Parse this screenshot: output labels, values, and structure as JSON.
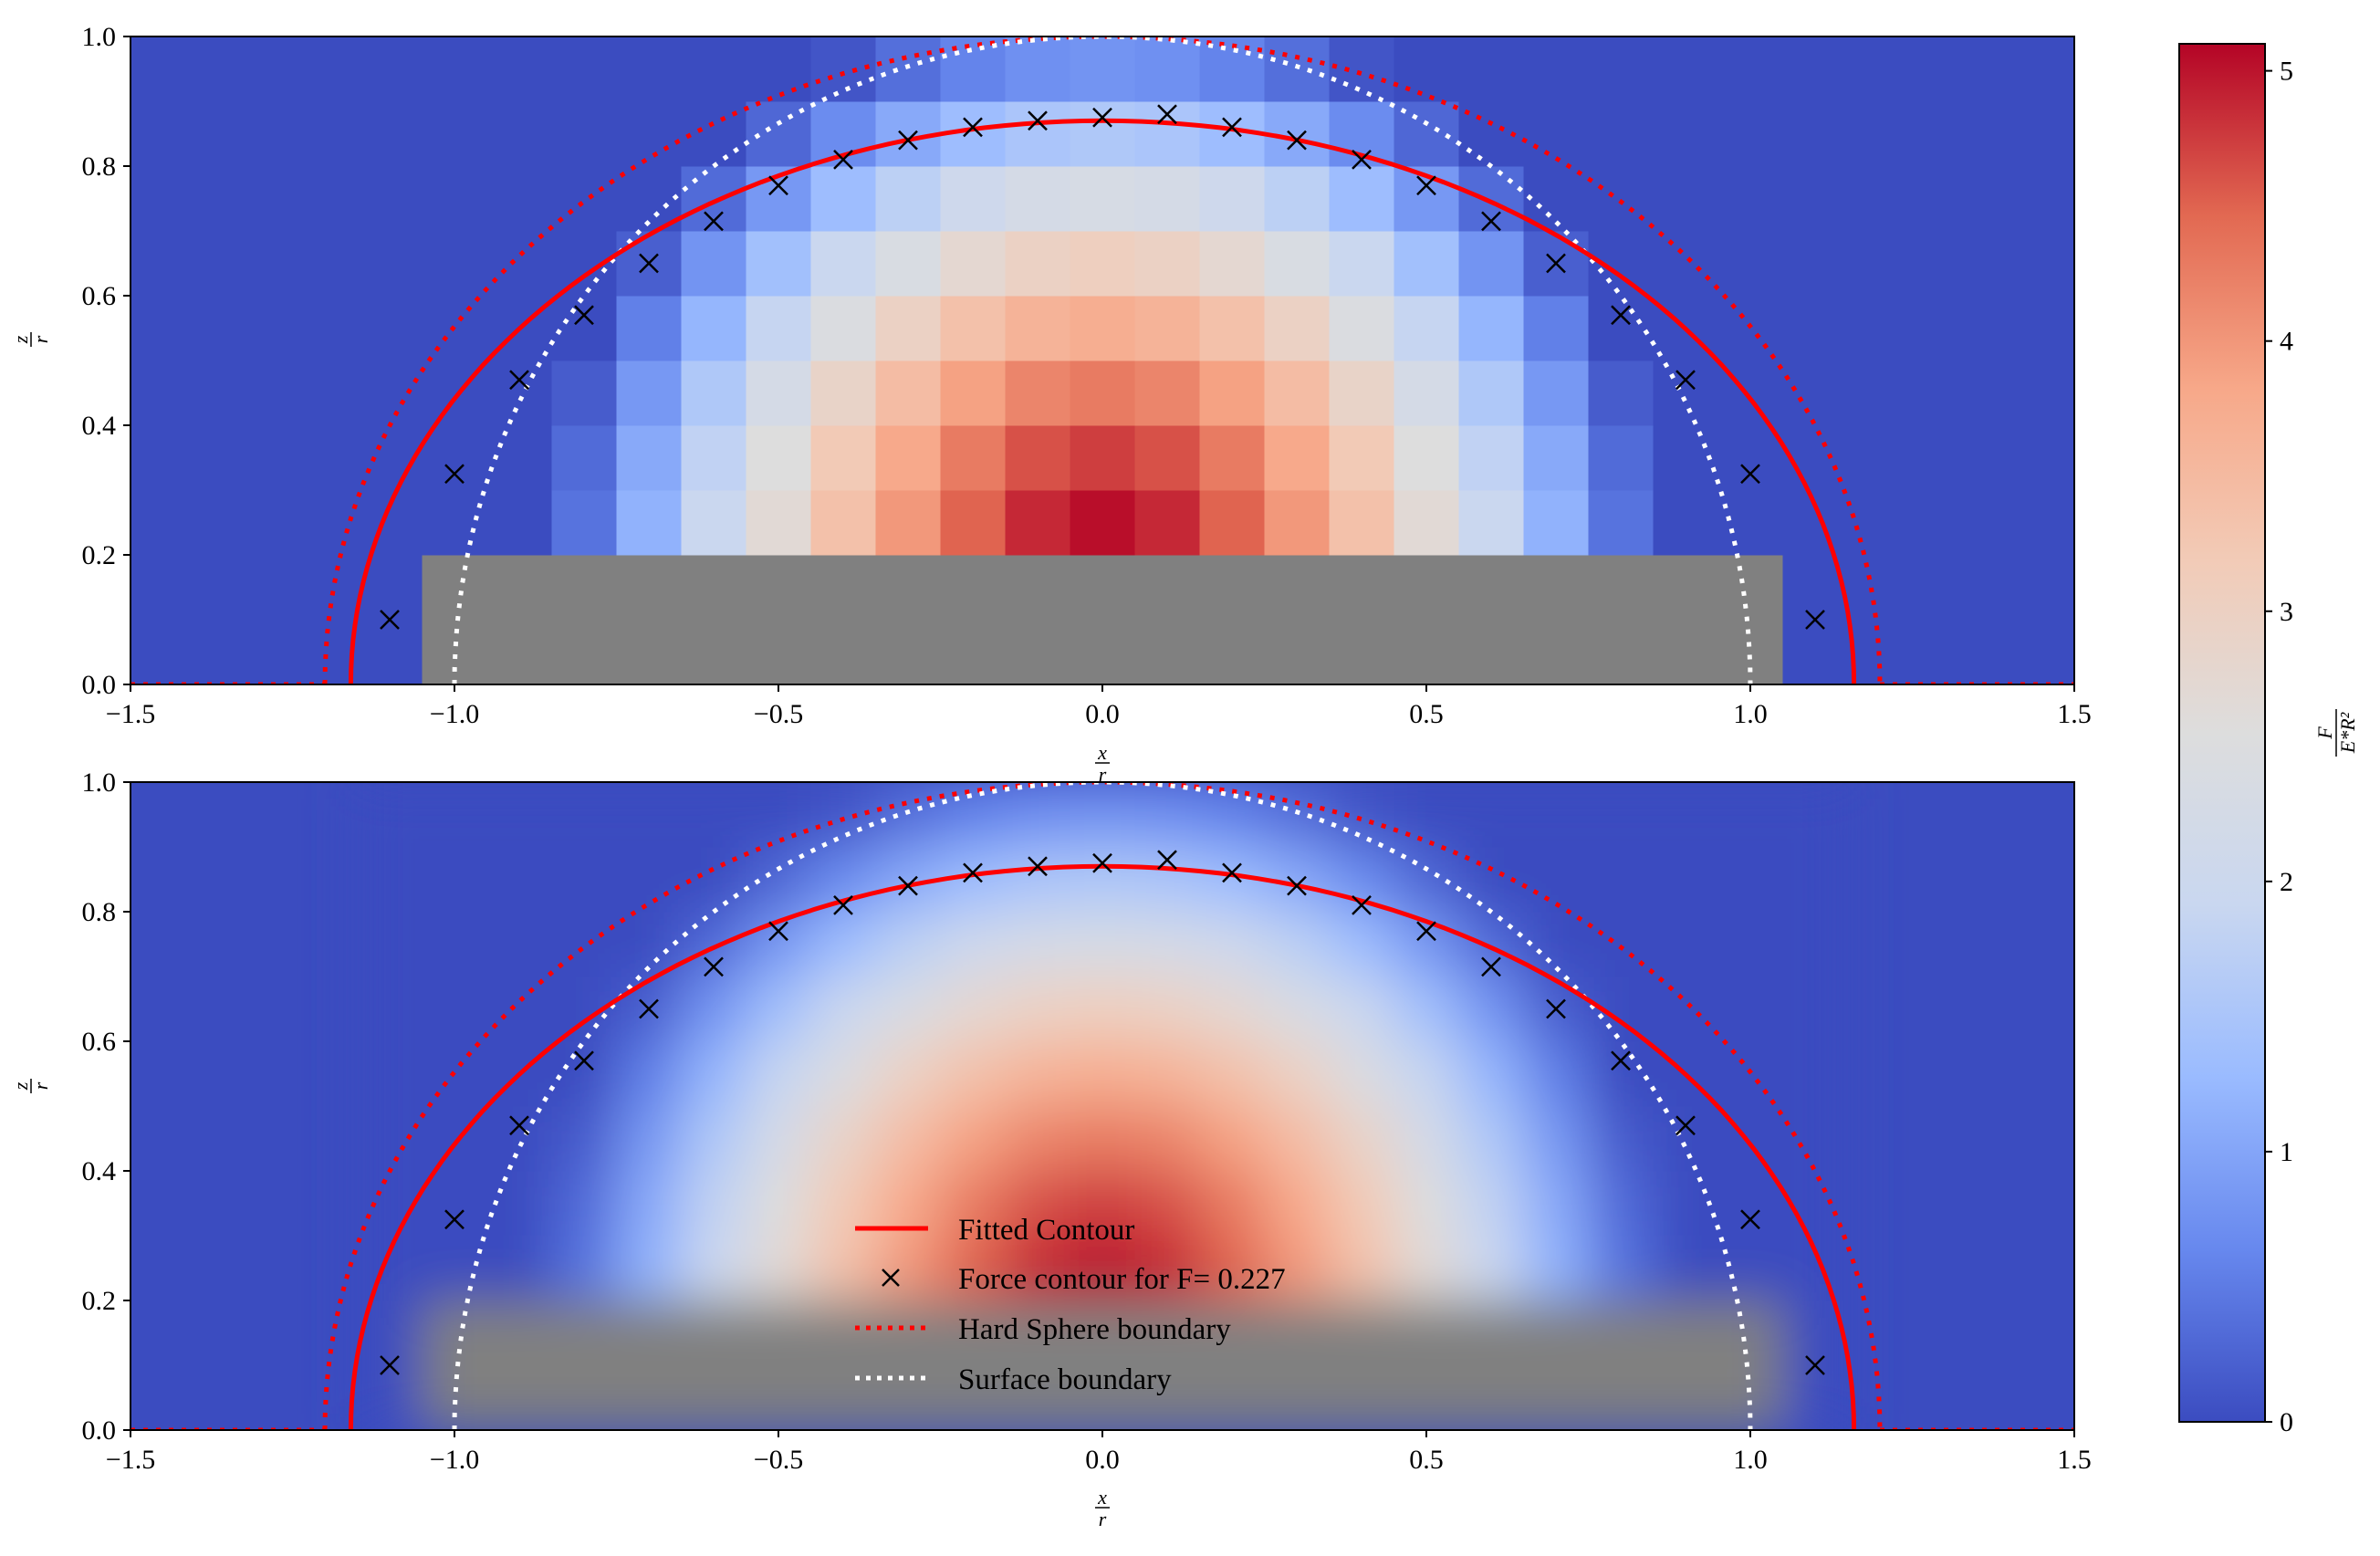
{
  "chart_data": [
    {
      "type": "heatmap",
      "panel": "top",
      "rendering": "pixelated grid",
      "xlim": [
        -1.5,
        1.5
      ],
      "ylim": [
        0.0,
        1.0
      ],
      "xticks": [
        "−1.5",
        "−1.0",
        "−0.5",
        "0.0",
        "0.5",
        "1.0",
        "1.5"
      ],
      "yticks": [
        "0.0",
        "0.2",
        "0.4",
        "0.6",
        "0.8",
        "1.0"
      ],
      "xlabel_num": "x",
      "xlabel_den": "r",
      "ylabel_num": "z",
      "ylabel_den": "r",
      "grid": false
    },
    {
      "type": "heatmap",
      "panel": "bottom",
      "rendering": "smooth interpolation",
      "xlim": [
        -1.5,
        1.5
      ],
      "ylim": [
        0.0,
        1.0
      ],
      "xticks": [
        "−1.5",
        "−1.0",
        "−0.5",
        "0.0",
        "0.5",
        "1.0",
        "1.5"
      ],
      "yticks": [
        "0.0",
        "0.2",
        "0.4",
        "0.6",
        "0.8",
        "1.0"
      ],
      "xlabel_num": "x",
      "xlabel_den": "r",
      "ylabel_num": "z",
      "ylabel_den": "r",
      "grid": false,
      "legend_position": "lower-center"
    }
  ],
  "heatmap": {
    "grid_x_centers": [
      -1.1,
      -1.0,
      -0.9,
      -0.8,
      -0.7,
      -0.6,
      -0.5,
      -0.4,
      -0.3,
      -0.2,
      -0.1,
      0.0,
      0.1,
      0.2,
      0.3,
      0.4,
      0.5,
      0.6,
      0.7,
      0.8,
      0.9,
      1.0,
      1.1
    ],
    "grid_z_centers": [
      0.05,
      0.15,
      0.25,
      0.35,
      0.45,
      0.55,
      0.65,
      0.75,
      0.85,
      0.95
    ],
    "force_peak": 5.1,
    "force_profile": "F = 5.1 * (1 - (d/0.87)^1.6)^1.2 with d = sqrt(x^2 + (z-0.2)^2)",
    "masked_region": "grey where z < 0.2 inside the surface boundary (solid contact)",
    "masked_color": "#808080"
  },
  "series": {
    "fitted_contour": {
      "name": "Fitted Contour",
      "style": "solid",
      "color": "#ff0000",
      "shape": "ellipse",
      "center": [
        0.0,
        0.0
      ],
      "semi_axis_x": 1.16,
      "semi_axis_z": 0.87
    },
    "force_contour": {
      "name": "Force contour for F= 0.227",
      "marker": "x",
      "color": "#000000",
      "x": [
        -1.1,
        -1.0,
        -0.9,
        -0.8,
        -0.7,
        -0.6,
        -0.5,
        -0.4,
        -0.3,
        -0.2,
        -0.1,
        0.0,
        0.1,
        0.2,
        0.3,
        0.4,
        0.5,
        0.6,
        0.7,
        0.8,
        0.9,
        1.0,
        1.1
      ],
      "z": [
        0.1,
        0.325,
        0.47,
        0.57,
        0.65,
        0.715,
        0.77,
        0.81,
        0.84,
        0.86,
        0.87,
        0.875,
        0.88,
        0.86,
        0.84,
        0.81,
        0.77,
        0.715,
        0.65,
        0.57,
        0.47,
        0.325,
        0.1
      ]
    },
    "hard_sphere_boundary": {
      "name": "Hard Sphere boundary",
      "style": "dotted",
      "color": "#ff0000",
      "shape": "ellipse",
      "center": [
        0.0,
        0.0
      ],
      "semi_axis_x": 1.2,
      "semi_axis_z": 1.0,
      "baseline": "extends along z=0 to the axis edges"
    },
    "surface_boundary": {
      "name": "Surface boundary",
      "style": "dotted",
      "color": "#ffffff",
      "shape": "ellipse",
      "center": [
        0.0,
        0.0
      ],
      "semi_axis_x": 1.0,
      "semi_axis_z": 1.0
    }
  },
  "legend": [
    {
      "label": "Fitted Contour",
      "style": "line",
      "color": "#ff0000"
    },
    {
      "label": "Force contour for F= 0.227",
      "style": "x",
      "color": "#000000"
    },
    {
      "label": "Hard Sphere boundary",
      "style": "dotted",
      "color": "#ff0000"
    },
    {
      "label": "Surface boundary",
      "style": "dotted",
      "color": "#ffffff"
    }
  ],
  "colorbar": {
    "cmap": "coolwarm",
    "stops": [
      "#3b4cc0",
      "#6788ee",
      "#9abbff",
      "#c9d7f0",
      "#dddddd",
      "#f2cbb7",
      "#f7a889",
      "#e26952",
      "#b40426"
    ],
    "range": [
      0,
      5.1
    ],
    "ticks": [
      0,
      1,
      2,
      3,
      4,
      5
    ],
    "tick_labels": [
      "0",
      "1",
      "2",
      "3",
      "4",
      "5"
    ],
    "label_num": "F",
    "label_den": "E*R²"
  }
}
